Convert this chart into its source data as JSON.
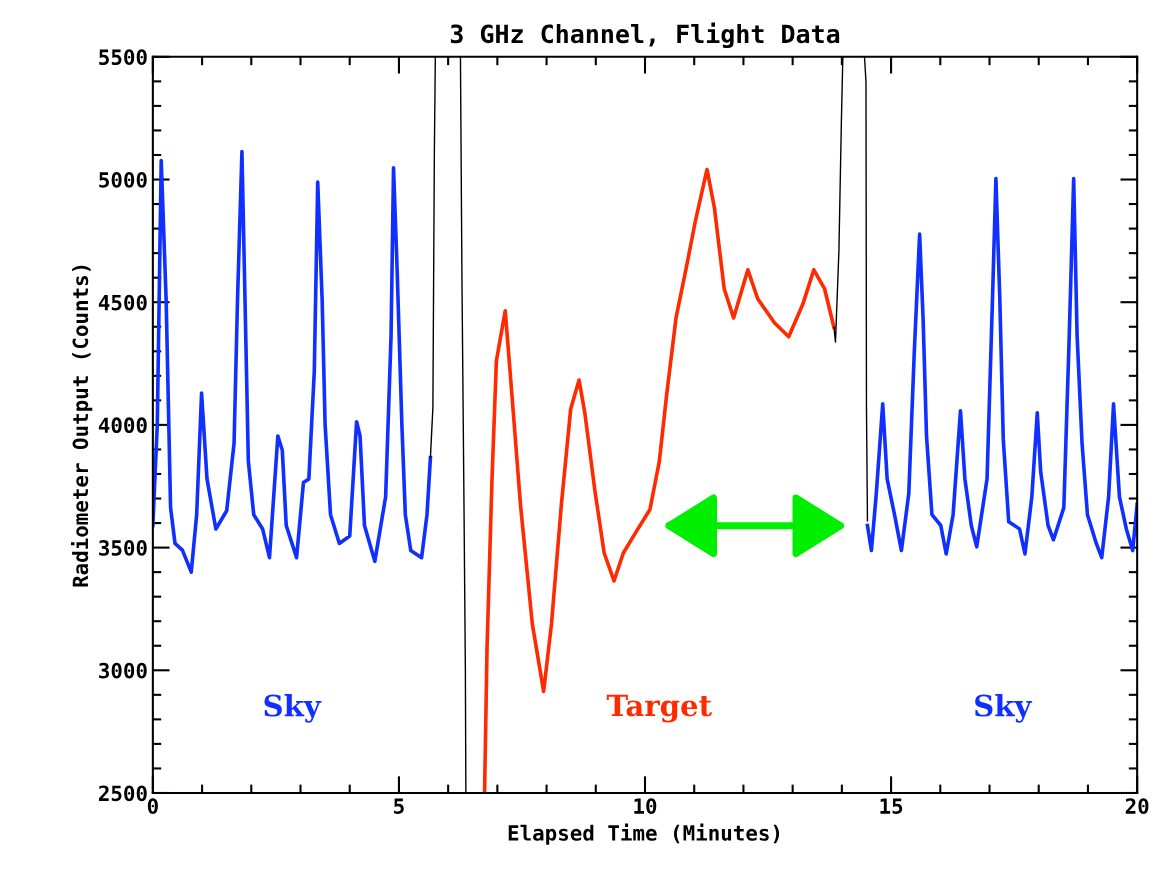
{
  "chart_data": {
    "type": "line",
    "title": "3 GHz Channel, Flight Data",
    "xlabel": "Elapsed Time (Minutes)",
    "ylabel": "Radiometer Output (Counts)",
    "xlim": [
      0,
      20
    ],
    "xticks": [
      0,
      5,
      10,
      15,
      20
    ],
    "ylim": [
      2500,
      5500
    ],
    "yticks": [
      2500,
      3000,
      3500,
      4000,
      4500,
      5000,
      5500
    ],
    "grid": false,
    "legend": false,
    "marker": "none",
    "line_style": "solid",
    "series": [
      {
        "name": "Sky",
        "color": "#1030ff",
        "x": [
          0,
          0.09,
          0.17,
          0.27,
          0.36,
          0.45,
          0.6,
          0.78,
          0.89,
          0.99,
          1.1,
          1.28,
          1.5,
          1.65,
          1.72,
          1.81,
          1.88,
          1.94,
          2.05,
          2.23,
          2.37,
          2.54,
          2.63,
          2.71,
          2.92,
          3.06,
          3.17,
          3.28,
          3.35,
          3.44,
          3.5,
          3.61,
          3.79,
          4.0,
          4.14,
          4.21,
          4.3,
          4.51,
          4.73,
          4.84,
          4.89,
          4.96,
          5.06,
          5.13,
          5.24,
          5.46,
          5.57,
          5.64,
          10,
          14.52,
          14.6,
          14.7,
          14.83,
          14.92,
          15.07,
          15.21,
          15.36,
          15.47,
          15.58,
          15.65,
          15.72,
          15.83,
          16.01,
          16.12,
          16.26,
          16.41,
          16.5,
          16.63,
          16.74,
          16.95,
          17.06,
          17.13,
          17.21,
          17.28,
          17.39,
          17.61,
          17.72,
          17.86,
          17.97,
          18.04,
          18.19,
          18.3,
          18.51,
          18.62,
          18.71,
          18.78,
          18.88,
          18.99,
          19.17,
          19.28,
          19.42,
          19.52,
          19.64,
          19.78,
          19.91,
          20.0
        ],
        "values": [
          3590,
          4000,
          5077,
          4510,
          3663,
          3517,
          3490,
          3400,
          3634,
          4130,
          3780,
          3576,
          3650,
          3925,
          4509,
          5114,
          4436,
          3853,
          3634,
          3576,
          3459,
          3955,
          3897,
          3590,
          3459,
          3765,
          3780,
          4217,
          4990,
          4509,
          4000,
          3634,
          3517,
          3547,
          4013,
          3955,
          3590,
          3444,
          3707,
          4363,
          5048,
          4654,
          4000,
          3634,
          3488,
          3459,
          3634,
          3867,
          null,
          3590,
          3488,
          3721,
          4086,
          3780,
          3634,
          3488,
          3721,
          4290,
          4778,
          4436,
          3955,
          3634,
          3590,
          3474,
          3634,
          4057,
          3780,
          3590,
          3503,
          3780,
          4509,
          5004,
          4509,
          3940,
          3605,
          3576,
          3474,
          3707,
          4049,
          3809,
          3590,
          3532,
          3663,
          4363,
          5004,
          4363,
          3926,
          3634,
          3517,
          3459,
          3707,
          4086,
          3707,
          3576,
          3488,
          3678
        ]
      },
      {
        "color": "#000000",
        "x": [
          5.64,
          5.69,
          5.72,
          5.74,
          6.0,
          6.25,
          6.28,
          6.32,
          6.35,
          6.36
        ],
        "values": [
          3867,
          4071,
          5114,
          5500,
          null,
          5500,
          4610,
          3715,
          3000,
          2500
        ]
      },
      {
        "name": "Target",
        "color": "#ff2a00",
        "x": [
          6.74,
          6.79,
          6.89,
          6.98,
          7.16,
          7.28,
          7.47,
          7.71,
          7.94,
          8.1,
          8.3,
          8.49,
          8.66,
          8.78,
          8.98,
          9.17,
          9.37,
          9.56,
          9.8,
          10.1,
          10.29,
          10.44,
          10.63,
          10.83,
          11.02,
          11.26,
          11.41,
          11.61,
          11.8,
          12.09,
          12.29,
          12.63,
          12.92,
          13.21,
          13.43,
          13.65,
          13.84
        ],
        "values": [
          2500,
          3091,
          3772,
          4261,
          4465,
          4163,
          3674,
          3189,
          2914,
          3189,
          3674,
          4065,
          4183,
          4045,
          3735,
          3478,
          3364,
          3478,
          3558,
          3655,
          3850,
          4123,
          4436,
          4632,
          4827,
          5041,
          4885,
          4554,
          4436,
          4632,
          4514,
          4416,
          4359,
          4494,
          4632,
          4554,
          4397
        ]
      },
      {
        "color": "#000000",
        "x": [
          13.84,
          13.87,
          13.94,
          13.99,
          14.02,
          14.2,
          14.46,
          14.49,
          14.5,
          14.52
        ],
        "values": [
          4397,
          4338,
          4709,
          5235,
          5500,
          null,
          5500,
          5398,
          4073,
          3609
        ]
      }
    ]
  }
}
